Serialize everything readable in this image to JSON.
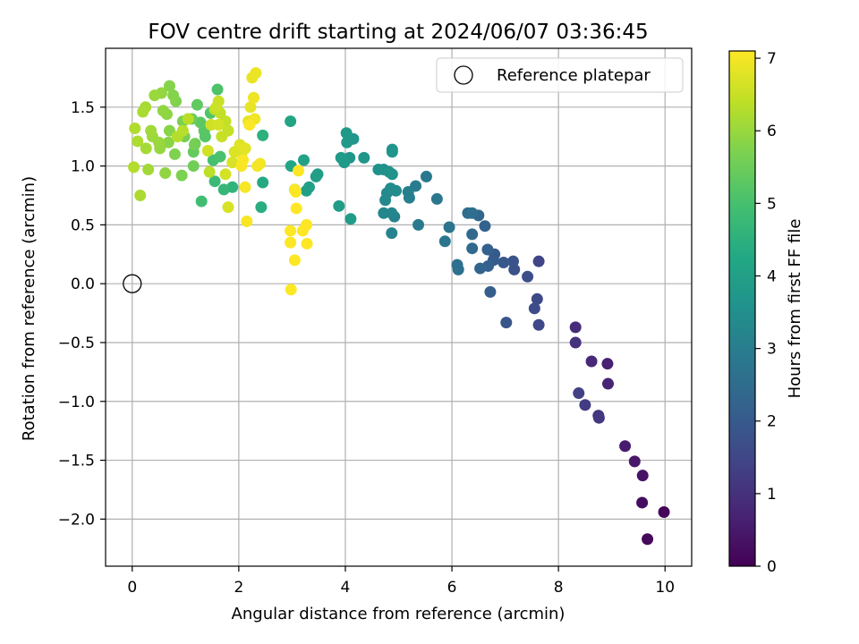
{
  "chart_data": {
    "type": "scatter",
    "title": "FOV centre drift starting at 2024/06/07 03:36:45",
    "xlabel": "Angular distance from reference (arcmin)",
    "ylabel": "Rotation from reference (arcmin)",
    "xlim": [
      -0.5,
      10.5
    ],
    "ylim": [
      -2.4,
      2.0
    ],
    "x_ticks": [
      0,
      2,
      4,
      6,
      8,
      10
    ],
    "x_tick_labels": [
      "0",
      "2",
      "4",
      "6",
      "8",
      "10"
    ],
    "y_ticks": [
      -2.0,
      -1.5,
      -1.0,
      -0.5,
      0.0,
      0.5,
      1.0,
      1.5
    ],
    "y_tick_labels": [
      "−2.0",
      "−1.5",
      "−1.0",
      "−0.5",
      "0.0",
      "0.5",
      "1.0",
      "1.5"
    ],
    "grid": true,
    "legend": {
      "placement": "top-right",
      "entries": [
        "Reference platepar"
      ]
    },
    "reference_point": {
      "name": "Reference platepar",
      "x": 0.0,
      "y": 0.0,
      "marker": "hollow-circle"
    },
    "colorbar": {
      "label": "Hours from first FF file",
      "colormap": "viridis",
      "range": [
        0,
        7.1
      ],
      "ticks": [
        0,
        1,
        2,
        3,
        4,
        5,
        6,
        7
      ],
      "tick_labels": [
        "0",
        "1",
        "2",
        "3",
        "4",
        "5",
        "6",
        "7"
      ]
    },
    "points": [
      [
        9.98,
        -1.94,
        0.08
      ],
      [
        9.67,
        -2.17,
        0.15
      ],
      [
        9.57,
        -1.86,
        0.25
      ],
      [
        9.58,
        -1.63,
        0.35
      ],
      [
        9.43,
        -1.51,
        0.45
      ],
      [
        9.25,
        -1.38,
        0.55
      ],
      [
        8.92,
        -0.68,
        0.65
      ],
      [
        8.93,
        -0.85,
        0.72
      ],
      [
        8.62,
        -0.66,
        0.82
      ],
      [
        8.32,
        -0.37,
        0.92
      ],
      [
        8.32,
        -0.5,
        1.0
      ],
      [
        8.75,
        -1.12,
        1.08
      ],
      [
        8.76,
        -1.14,
        1.15
      ],
      [
        8.5,
        -1.03,
        1.25
      ],
      [
        8.38,
        -0.93,
        1.35
      ],
      [
        7.63,
        0.19,
        1.45
      ],
      [
        7.63,
        -0.35,
        1.52
      ],
      [
        7.6,
        -0.13,
        1.58
      ],
      [
        7.55,
        -0.21,
        1.62
      ],
      [
        7.42,
        0.06,
        1.7
      ],
      [
        7.17,
        0.12,
        1.78
      ],
      [
        7.15,
        0.19,
        1.85
      ],
      [
        7.02,
        -0.33,
        1.9
      ],
      [
        6.97,
        0.18,
        1.95
      ],
      [
        6.8,
        0.25,
        2.0
      ],
      [
        6.78,
        0.2,
        2.05
      ],
      [
        6.72,
        -0.07,
        2.1
      ],
      [
        6.68,
        0.15,
        2.15
      ],
      [
        6.67,
        0.29,
        2.2
      ],
      [
        6.62,
        0.49,
        2.25
      ],
      [
        6.53,
        0.13,
        2.3
      ],
      [
        6.5,
        0.58,
        2.35
      ],
      [
        6.38,
        0.42,
        2.4
      ],
      [
        6.38,
        0.3,
        2.45
      ],
      [
        6.3,
        0.6,
        2.5
      ],
      [
        6.38,
        0.6,
        2.55
      ],
      [
        6.1,
        0.16,
        2.6
      ],
      [
        6.12,
        0.12,
        2.65
      ],
      [
        5.95,
        0.48,
        2.7
      ],
      [
        5.87,
        0.36,
        2.75
      ],
      [
        5.72,
        0.72,
        2.8
      ],
      [
        5.52,
        0.91,
        2.85
      ],
      [
        5.37,
        0.5,
        2.9
      ],
      [
        5.32,
        0.83,
        2.95
      ],
      [
        5.2,
        0.73,
        3.0
      ],
      [
        5.18,
        0.78,
        3.05
      ],
      [
        4.92,
        0.57,
        3.1
      ],
      [
        4.87,
        0.43,
        3.15
      ],
      [
        4.87,
        0.6,
        3.2
      ],
      [
        4.72,
        0.6,
        3.25
      ],
      [
        4.75,
        0.71,
        3.3
      ],
      [
        4.78,
        0.77,
        3.35
      ],
      [
        4.85,
        0.81,
        3.4
      ],
      [
        4.95,
        0.79,
        3.45
      ],
      [
        4.72,
        0.97,
        3.5
      ],
      [
        4.62,
        0.97,
        3.55
      ],
      [
        4.88,
        0.93,
        3.6
      ],
      [
        4.82,
        0.95,
        3.62
      ],
      [
        4.88,
        1.14,
        3.65
      ],
      [
        4.88,
        1.12,
        3.68
      ],
      [
        4.35,
        1.07,
        3.7
      ],
      [
        4.15,
        1.23,
        3.72
      ],
      [
        4.08,
        1.07,
        3.75
      ],
      [
        4.03,
        1.2,
        3.78
      ],
      [
        4.02,
        1.28,
        3.8
      ],
      [
        3.98,
        1.03,
        3.82
      ],
      [
        3.92,
        1.07,
        3.85
      ],
      [
        4.1,
        0.55,
        3.88
      ],
      [
        3.88,
        0.66,
        3.9
      ],
      [
        3.48,
        0.93,
        3.92
      ],
      [
        3.45,
        0.91,
        3.95
      ],
      [
        3.32,
        0.82,
        3.98
      ],
      [
        3.27,
        0.79,
        4.0
      ],
      [
        3.22,
        1.05,
        4.05
      ],
      [
        3.05,
        0.8,
        4.1
      ],
      [
        2.97,
        1.38,
        4.15
      ],
      [
        2.98,
        1.0,
        4.2
      ],
      [
        2.45,
        0.86,
        4.3
      ],
      [
        2.42,
        0.65,
        4.4
      ],
      [
        2.45,
        1.26,
        4.5
      ],
      [
        1.88,
        0.82,
        4.6
      ],
      [
        1.72,
        0.8,
        4.7
      ],
      [
        1.55,
        0.87,
        4.8
      ],
      [
        1.3,
        0.7,
        4.9
      ],
      [
        1.52,
        1.05,
        5.0
      ],
      [
        1.65,
        1.08,
        5.05
      ],
      [
        1.6,
        1.65,
        5.1
      ],
      [
        1.47,
        1.45,
        5.15
      ],
      [
        1.37,
        1.25,
        5.2
      ],
      [
        1.35,
        1.3,
        5.25
      ],
      [
        1.28,
        1.37,
        5.3
      ],
      [
        1.22,
        1.52,
        5.35
      ],
      [
        1.15,
        1.12,
        5.4
      ],
      [
        1.12,
        1.4,
        5.45
      ],
      [
        1.18,
        1.19,
        5.5
      ],
      [
        1.15,
        1.0,
        5.55
      ],
      [
        1.17,
        1.18,
        5.6
      ],
      [
        1.05,
        1.4,
        5.62
      ],
      [
        0.98,
        1.25,
        5.65
      ],
      [
        0.95,
        1.38,
        5.68
      ],
      [
        0.93,
        0.92,
        5.7
      ],
      [
        0.8,
        1.1,
        5.72
      ],
      [
        0.82,
        1.55,
        5.75
      ],
      [
        0.77,
        1.6,
        5.78
      ],
      [
        0.7,
        1.68,
        5.8
      ],
      [
        0.7,
        1.3,
        5.82
      ],
      [
        0.68,
        1.2,
        5.85
      ],
      [
        0.65,
        1.44,
        5.88
      ],
      [
        0.62,
        0.94,
        5.9
      ],
      [
        0.58,
        1.47,
        5.92
      ],
      [
        0.55,
        1.62,
        5.95
      ],
      [
        0.52,
        1.15,
        5.98
      ],
      [
        0.5,
        1.2,
        6.0
      ],
      [
        0.42,
        1.6,
        6.02
      ],
      [
        0.38,
        1.25,
        6.05
      ],
      [
        0.35,
        1.3,
        6.08
      ],
      [
        0.3,
        0.97,
        6.1
      ],
      [
        0.26,
        1.15,
        6.12
      ],
      [
        0.25,
        1.5,
        6.15
      ],
      [
        0.2,
        1.46,
        6.18
      ],
      [
        0.15,
        0.75,
        6.2
      ],
      [
        0.1,
        1.21,
        6.22
      ],
      [
        0.05,
        1.32,
        6.25
      ],
      [
        0.03,
        0.99,
        6.28
      ],
      [
        0.85,
        1.25,
        6.3
      ],
      [
        0.95,
        1.3,
        6.32
      ],
      [
        1.05,
        1.4,
        6.35
      ],
      [
        1.45,
        0.95,
        6.38
      ],
      [
        1.55,
        1.48,
        6.4
      ],
      [
        1.65,
        1.45,
        6.42
      ],
      [
        1.75,
        1.38,
        6.45
      ],
      [
        1.8,
        1.3,
        6.48
      ],
      [
        1.68,
        1.25,
        6.5
      ],
      [
        1.62,
        1.55,
        6.52
      ],
      [
        1.58,
        1.5,
        6.55
      ],
      [
        1.48,
        1.35,
        6.58
      ],
      [
        1.42,
        1.13,
        6.6
      ],
      [
        1.62,
        1.35,
        6.62
      ],
      [
        1.75,
        0.93,
        6.65
      ],
      [
        1.8,
        0.65,
        6.68
      ],
      [
        1.88,
        1.03,
        6.7
      ],
      [
        1.92,
        1.12,
        6.72
      ],
      [
        2.02,
        1.18,
        6.75
      ],
      [
        2.05,
        1.1,
        6.78
      ],
      [
        2.12,
        1.15,
        6.8
      ],
      [
        2.18,
        1.38,
        6.82
      ],
      [
        2.22,
        1.5,
        6.85
      ],
      [
        2.25,
        1.75,
        6.88
      ],
      [
        2.32,
        1.79,
        6.9
      ],
      [
        2.28,
        1.58,
        6.92
      ],
      [
        2.3,
        1.4,
        6.95
      ],
      [
        2.35,
        1.0,
        6.98
      ],
      [
        2.4,
        1.02,
        7.0
      ],
      [
        2.12,
        0.82,
        7.02
      ],
      [
        2.15,
        0.53,
        7.04
      ],
      [
        2.05,
        1.0,
        7.05
      ],
      [
        2.08,
        1.05,
        7.06
      ],
      [
        2.2,
        1.35,
        7.07
      ],
      [
        2.97,
        0.35,
        7.08
      ],
      [
        2.97,
        0.45,
        7.08
      ],
      [
        2.98,
        -0.05,
        7.09
      ],
      [
        3.05,
        0.2,
        7.09
      ],
      [
        3.08,
        0.64,
        7.1
      ],
      [
        3.12,
        0.96,
        7.1
      ],
      [
        3.2,
        0.45,
        7.1
      ],
      [
        3.28,
        0.34,
        7.1
      ],
      [
        3.27,
        0.5,
        7.1
      ],
      [
        3.05,
        0.8,
        7.1
      ],
      [
        3.07,
        0.78,
        7.1
      ]
    ]
  }
}
